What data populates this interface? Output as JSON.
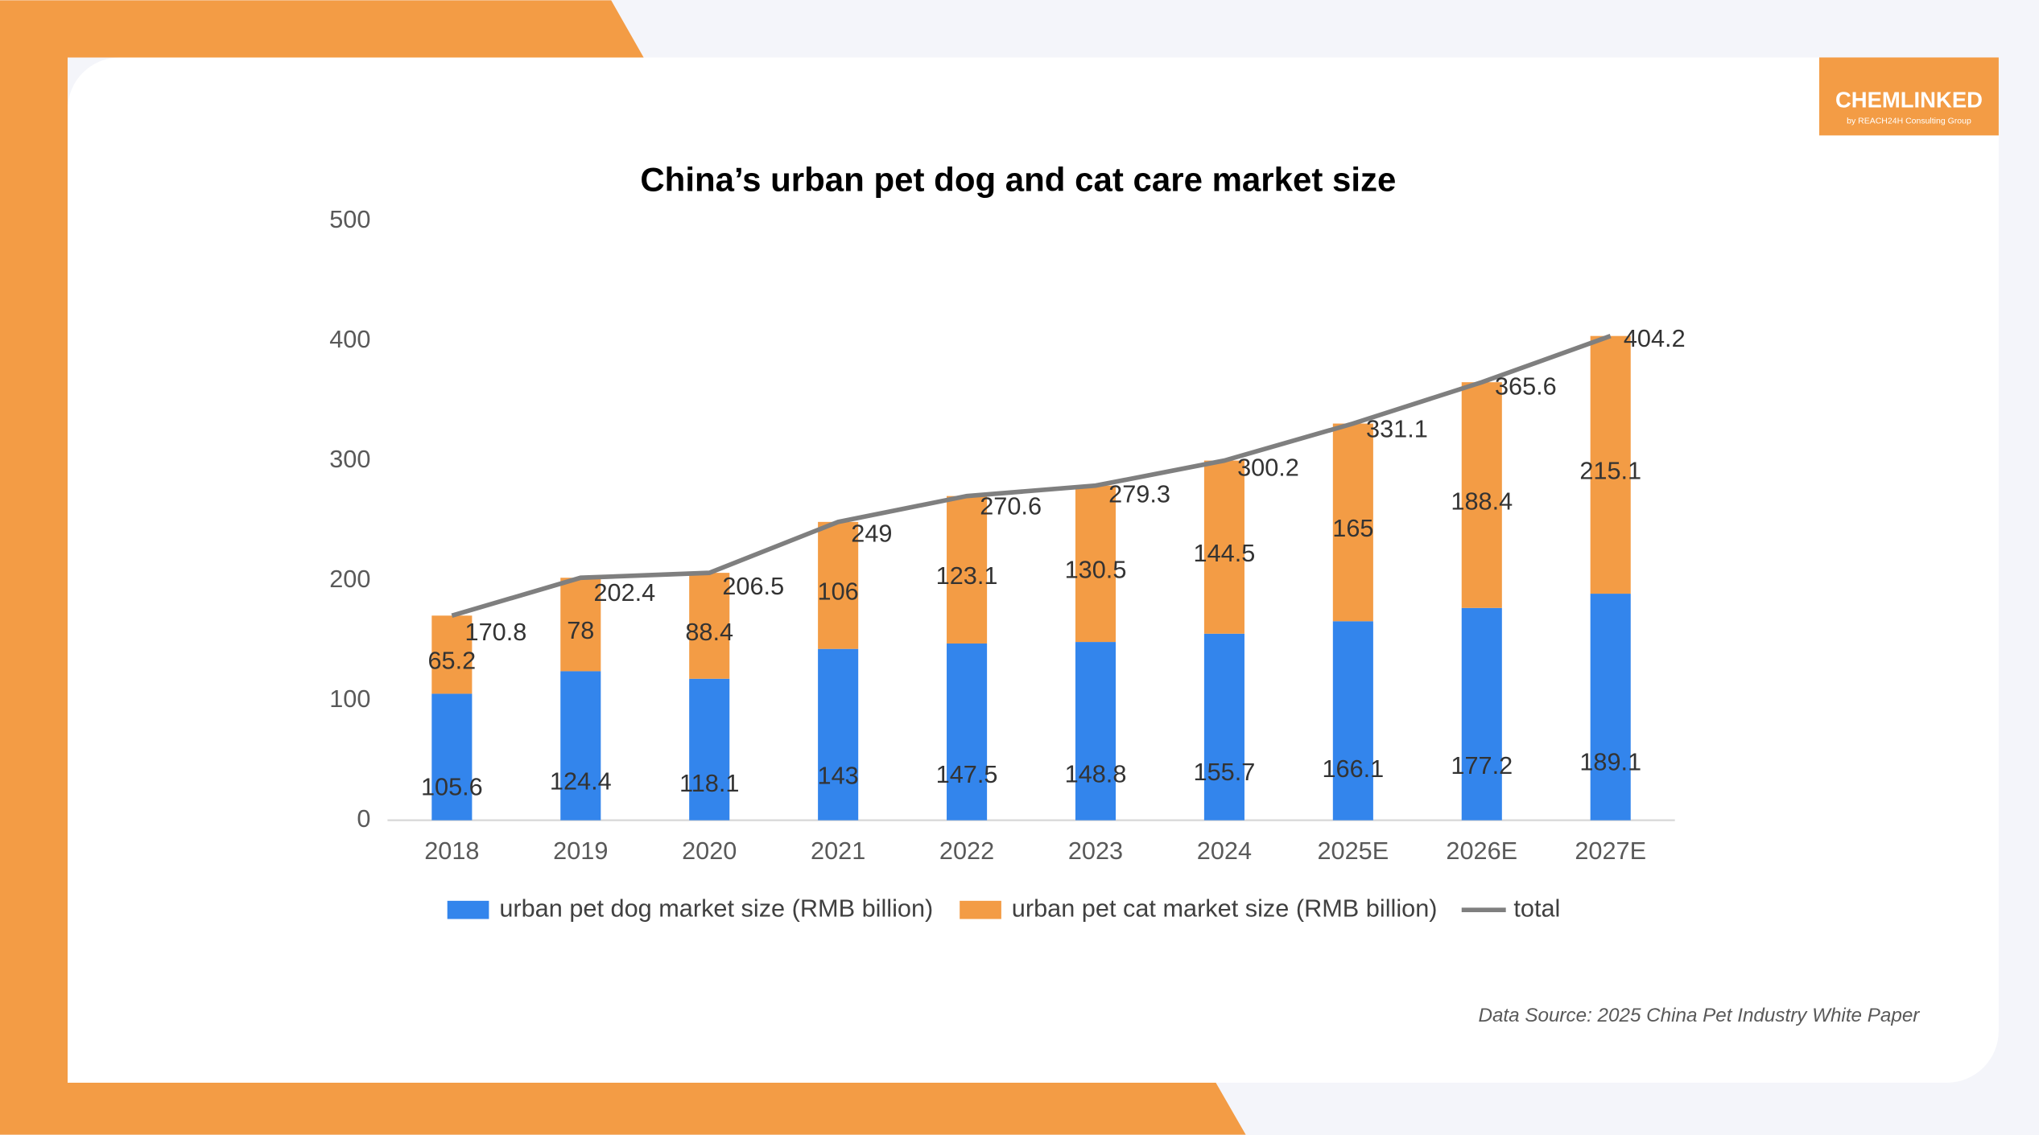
{
  "logo": {
    "name": "CHEMLINKED",
    "tagline": "by REACH24H Consulting Group"
  },
  "source": "Data Source: 2025 China Pet Industry White Paper",
  "chart_data": {
    "type": "bar",
    "stacked": true,
    "title": "China’s urban pet dog and cat care market size",
    "categories": [
      "2018",
      "2019",
      "2020",
      "2021",
      "2022",
      "2023",
      "2024",
      "2025E",
      "2026E",
      "2027E"
    ],
    "series": [
      {
        "name": "urban pet dog market size (RMB billion)",
        "color": "#3385ec",
        "type": "bar",
        "values": [
          105.6,
          124.4,
          118.1,
          143,
          147.5,
          148.8,
          155.7,
          166.1,
          177.2,
          189.1
        ]
      },
      {
        "name": "urban pet cat market size (RMB billion)",
        "color": "#f39c45",
        "type": "bar",
        "values": [
          65.2,
          78,
          88.4,
          106,
          123.1,
          130.5,
          144.5,
          165,
          188.4,
          215.1
        ]
      },
      {
        "name": "total",
        "color": "#7f7f7f",
        "type": "line",
        "values": [
          170.8,
          202.4,
          206.5,
          249,
          270.6,
          279.3,
          300.2,
          331.1,
          365.6,
          404.2
        ]
      }
    ],
    "ylim": [
      0,
      500
    ],
    "yticks": [
      0,
      100,
      200,
      300,
      400,
      500
    ],
    "grid": false,
    "legend": "bottom"
  }
}
